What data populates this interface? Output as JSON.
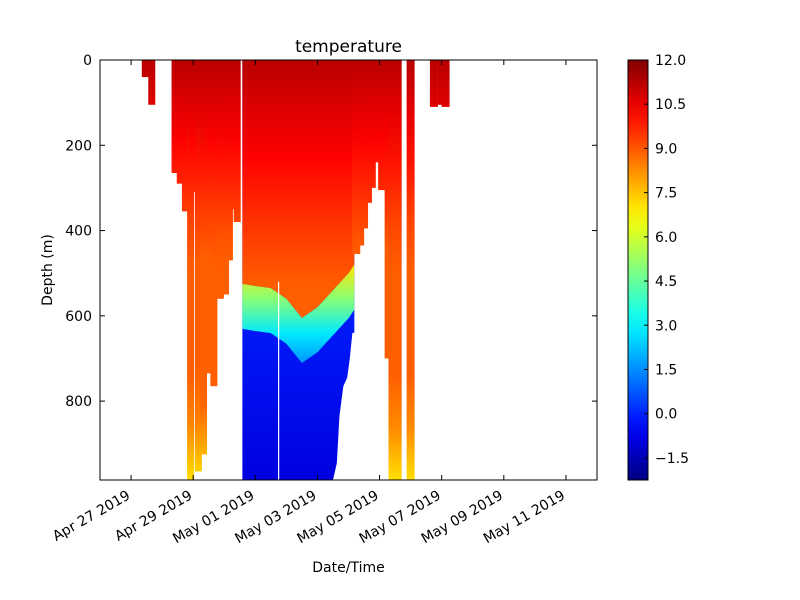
{
  "chart_data": {
    "type": "heatmap",
    "title": "temperature",
    "xlabel": "Date/Time",
    "ylabel": "Depth (m)",
    "x_type": "date",
    "xlim": [
      "2019-04-26T00:00",
      "2019-05-12T00:00"
    ],
    "ylim": [
      985,
      0
    ],
    "y_inverted": true,
    "grid": false,
    "x_ticks": [
      {
        "value": "2019-04-27",
        "label": "Apr 27 2019"
      },
      {
        "value": "2019-04-29",
        "label": "Apr 29 2019"
      },
      {
        "value": "2019-05-01",
        "label": "May 01 2019"
      },
      {
        "value": "2019-05-03",
        "label": "May 03 2019"
      },
      {
        "value": "2019-05-05",
        "label": "May 05 2019"
      },
      {
        "value": "2019-05-07",
        "label": "May 07 2019"
      },
      {
        "value": "2019-05-09",
        "label": "May 09 2019"
      },
      {
        "value": "2019-05-11",
        "label": "May 11 2019"
      }
    ],
    "y_ticks": [
      {
        "value": 0,
        "label": "0"
      },
      {
        "value": 200,
        "label": "200"
      },
      {
        "value": 400,
        "label": "400"
      },
      {
        "value": 600,
        "label": "600"
      },
      {
        "value": 800,
        "label": "800"
      }
    ],
    "colorbar": {
      "colormap": "jet",
      "range": [
        -2.25,
        12.0
      ],
      "ticks": [
        {
          "value": 12.0,
          "label": "12.0"
        },
        {
          "value": 10.5,
          "label": "10.5"
        },
        {
          "value": 9.0,
          "label": "9.0"
        },
        {
          "value": 7.5,
          "label": "7.5"
        },
        {
          "value": 6.0,
          "label": "6.0"
        },
        {
          "value": 4.5,
          "label": "4.5"
        },
        {
          "value": 3.0,
          "label": "3.0"
        },
        {
          "value": 1.5,
          "label": "1.5"
        },
        {
          "value": 0.0,
          "label": "0.0"
        },
        {
          "value": -1.5,
          "label": "−1.5"
        }
      ]
    },
    "profiles": [
      {
        "time": "2019-04-27T11:00",
        "max_depth": 40
      },
      {
        "time": "2019-04-27T16:00",
        "max_depth": 105
      },
      {
        "time": "2019-04-28T10:00",
        "max_depth": 265
      },
      {
        "time": "2019-04-28T14:00",
        "max_depth": 290
      },
      {
        "time": "2019-04-28T18:00",
        "max_depth": 355
      },
      {
        "time": "2019-04-28T22:00",
        "max_depth": 985
      },
      {
        "time": "2019-04-29T00:00",
        "max_depth": 310
      },
      {
        "time": "2019-04-29T04:00",
        "max_depth": 965
      },
      {
        "time": "2019-04-29T08:00",
        "max_depth": 925
      },
      {
        "time": "2019-04-29T13:00",
        "max_depth": 735
      },
      {
        "time": "2019-04-29T16:00",
        "max_depth": 765
      },
      {
        "time": "2019-04-29T21:00",
        "max_depth": 560
      },
      {
        "time": "2019-04-30T01:00",
        "max_depth": 550
      },
      {
        "time": "2019-04-30T04:00",
        "max_depth": 470
      },
      {
        "time": "2019-04-30T07:00",
        "max_depth": 350
      },
      {
        "time": "2019-04-30T10:00",
        "max_depth": 380
      }
    ],
    "deep_section": {
      "time_start": "2019-04-30T14:00",
      "time_end": "2019-05-04T04:30",
      "bottom": [
        {
          "time": "2019-04-30T14:00",
          "depth": 985
        },
        {
          "time": "2019-05-03T12:00",
          "depth": 985
        },
        {
          "time": "2019-05-03T15:00",
          "depth": 945
        },
        {
          "time": "2019-05-03T17:00",
          "depth": 835
        },
        {
          "time": "2019-05-03T20:00",
          "depth": 765
        },
        {
          "time": "2019-05-03T23:00",
          "depth": 745
        },
        {
          "time": "2019-05-04T01:00",
          "depth": 700
        },
        {
          "time": "2019-05-04T03:00",
          "depth": 640
        },
        {
          "time": "2019-05-04T04:30",
          "depth": 640
        }
      ],
      "cline_start": "2019-04-30T14:00",
      "cline_end": "2019-05-04T04:30",
      "thermocline": [
        {
          "time": "2019-04-30T14:00",
          "depth": 525
        },
        {
          "time": "2019-05-01T00:00",
          "depth": 530
        },
        {
          "time": "2019-05-01T12:00",
          "depth": 535
        },
        {
          "time": "2019-05-02T00:00",
          "depth": 560
        },
        {
          "time": "2019-05-02T12:00",
          "depth": 605
        },
        {
          "time": "2019-05-03T00:00",
          "depth": 580
        },
        {
          "time": "2019-05-03T12:00",
          "depth": 540
        },
        {
          "time": "2019-05-04T00:00",
          "depth": 500
        },
        {
          "time": "2019-05-04T04:30",
          "depth": 480
        }
      ],
      "gap_time": "2019-05-01T18:00"
    },
    "ascent_profiles": [
      {
        "time": "2019-05-04T06:00",
        "max_depth": 455
      },
      {
        "time": "2019-05-04T09:00",
        "max_depth": 435
      },
      {
        "time": "2019-05-04T12:00",
        "max_depth": 395
      },
      {
        "time": "2019-05-04T15:00",
        "max_depth": 335
      },
      {
        "time": "2019-05-04T18:00",
        "max_depth": 300
      },
      {
        "time": "2019-05-04T21:00",
        "max_depth": 240
      },
      {
        "time": "2019-05-05T00:00",
        "max_depth": 180
      }
    ],
    "late_profiles": [
      {
        "time": "2019-05-05T02:00",
        "max_depth": 305
      },
      {
        "time": "2019-05-05T07:00",
        "max_depth": 700
      },
      {
        "time": "2019-05-05T10:00",
        "max_depth": 985
      },
      {
        "time": "2019-05-05T14:00",
        "max_depth": 985
      },
      {
        "time": "2019-05-06T00:00",
        "max_depth": 985
      },
      {
        "time": "2019-05-06T18:00",
        "max_depth": 110
      },
      {
        "time": "2019-05-07T00:00",
        "max_depth": 105
      },
      {
        "time": "2019-05-07T03:00",
        "max_depth": 110
      }
    ]
  }
}
